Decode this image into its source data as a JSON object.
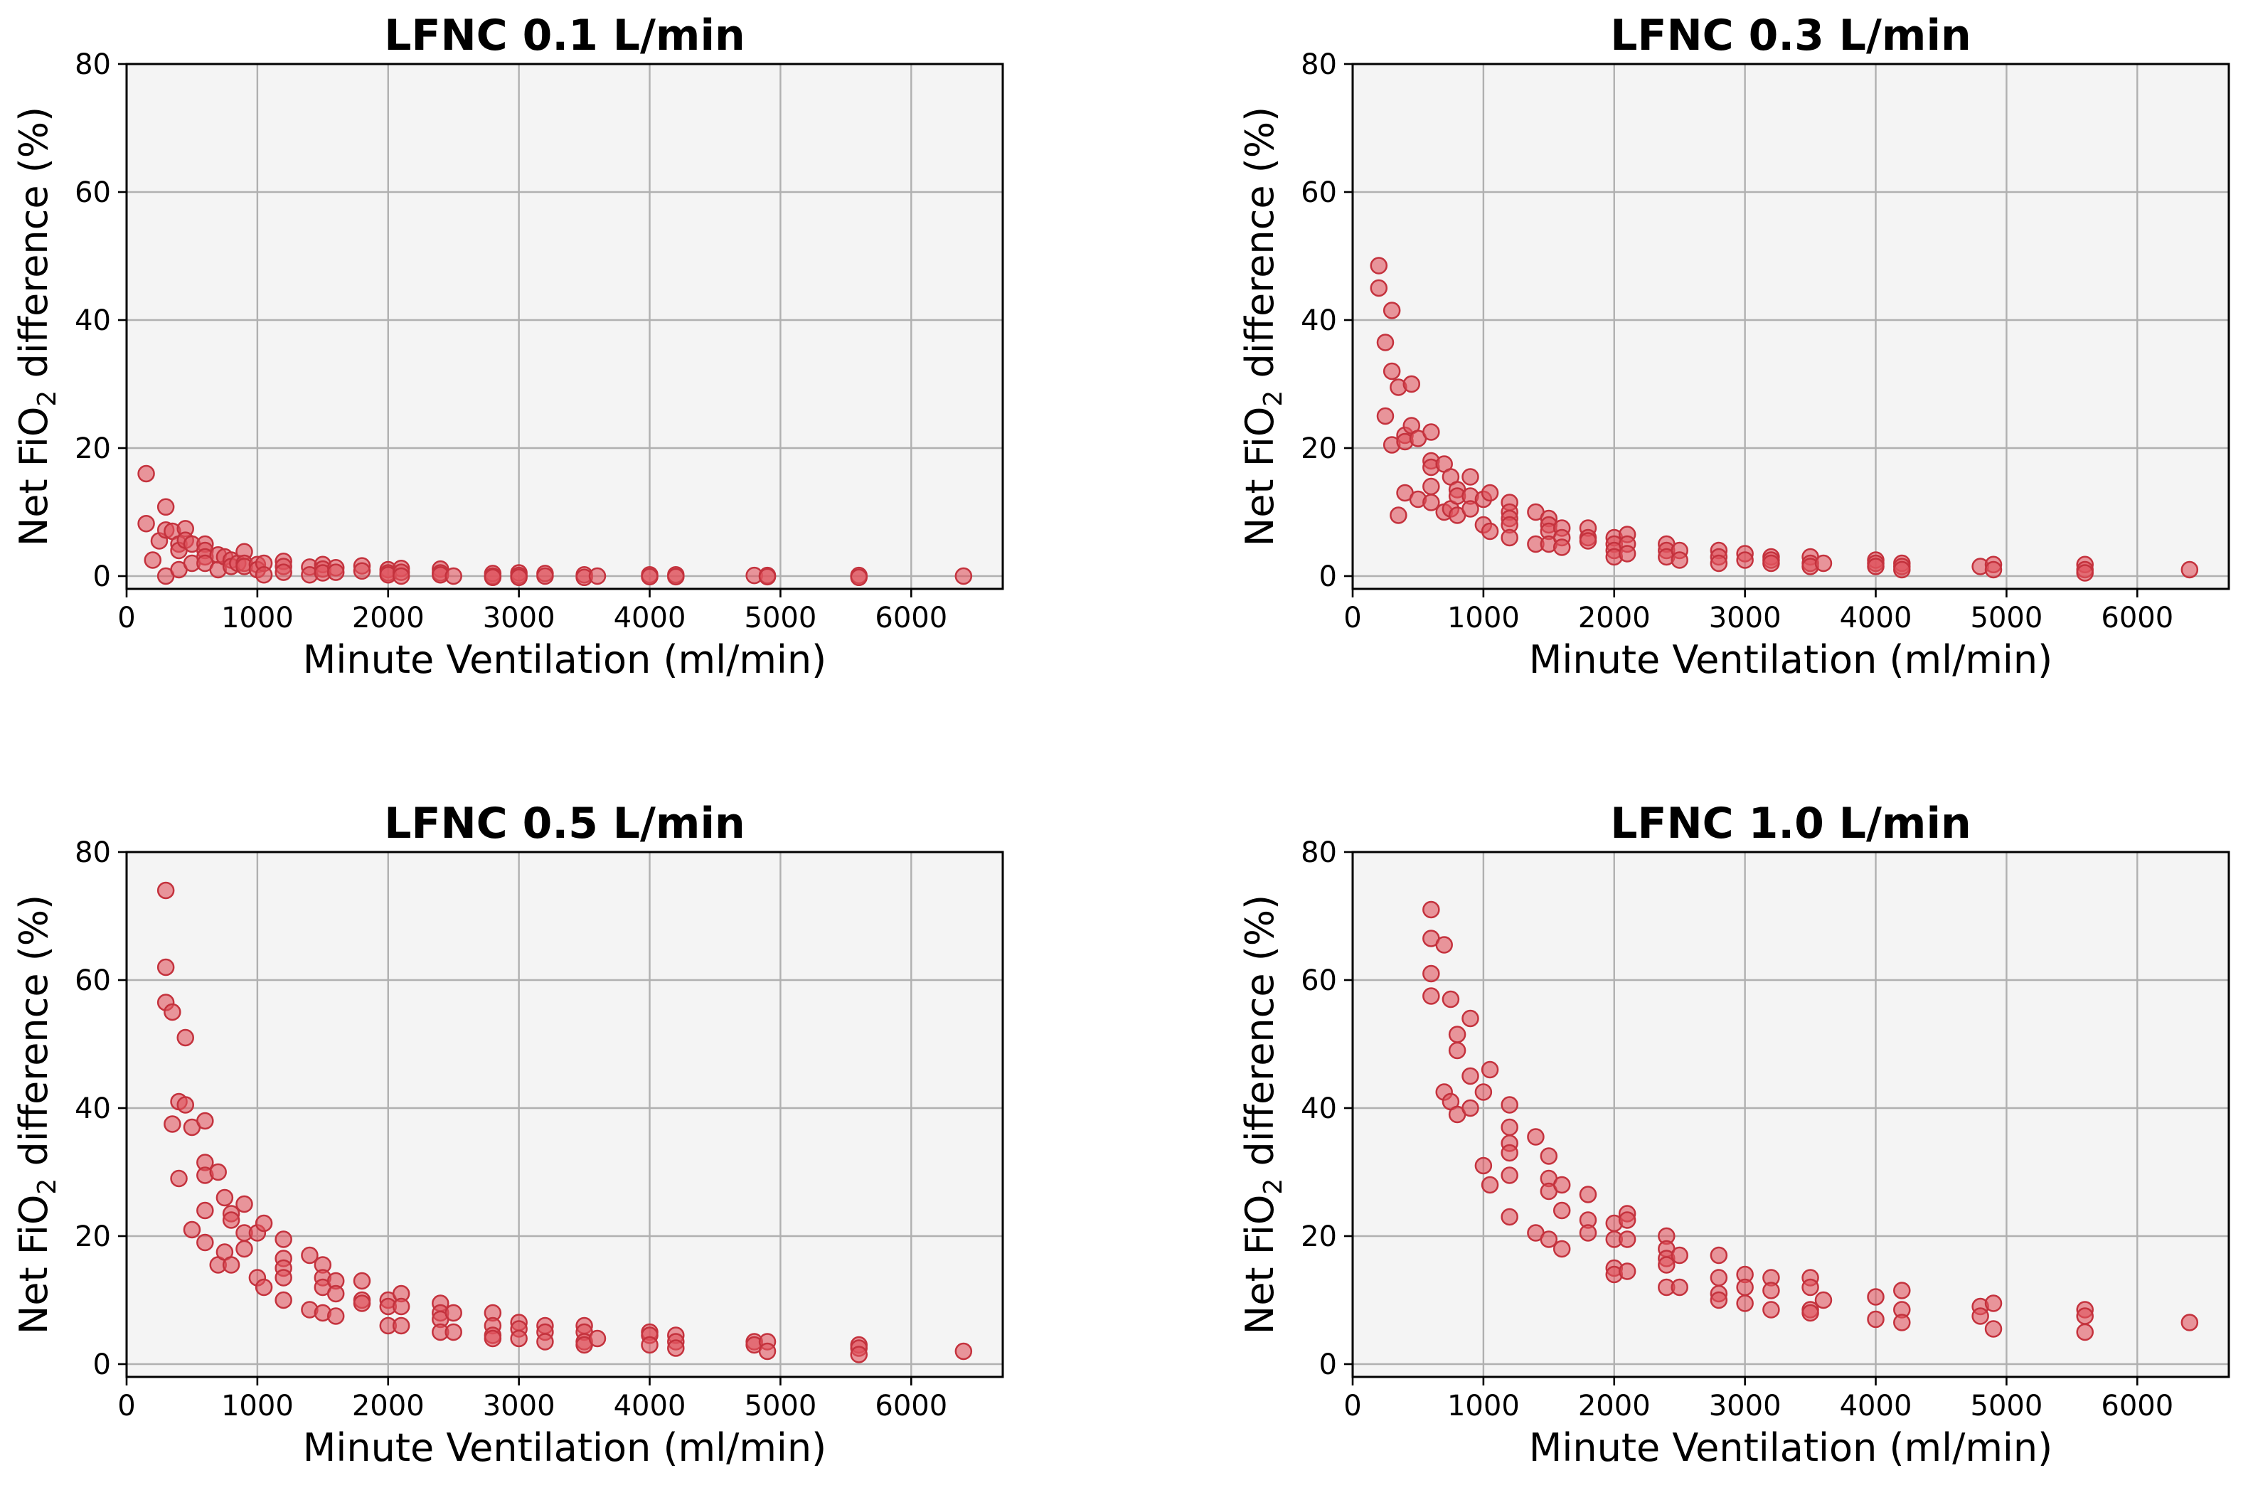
{
  "colors": {
    "marker_fill": "#e0535e",
    "marker_edge": "#c4323d",
    "panel_background": "#f4f4f4",
    "grid": "#b0b0b0"
  },
  "chart_data": [
    {
      "type": "scatter",
      "title": "LFNC 0.1 L/min",
      "xlabel": "Minute Ventilation (ml/min)",
      "ylabel_parts": [
        "Net FiO",
        "2",
        " difference (%)"
      ],
      "xlim": [
        0,
        6700
      ],
      "ylim": [
        -2,
        80
      ],
      "xticks": [
        0,
        1000,
        2000,
        3000,
        4000,
        5000,
        6000
      ],
      "yticks": [
        0,
        20,
        40,
        60,
        80
      ],
      "grid": true,
      "points": [
        [
          150,
          16
        ],
        [
          150,
          8.2
        ],
        [
          200,
          2.5
        ],
        [
          250,
          5.5
        ],
        [
          300,
          10.8
        ],
        [
          300,
          7.2
        ],
        [
          300,
          0
        ],
        [
          350,
          7
        ],
        [
          400,
          5
        ],
        [
          400,
          4
        ],
        [
          400,
          1
        ],
        [
          450,
          7.4
        ],
        [
          450,
          5.6
        ],
        [
          500,
          5
        ],
        [
          500,
          2
        ],
        [
          600,
          5
        ],
        [
          600,
          4
        ],
        [
          600,
          3
        ],
        [
          600,
          2
        ],
        [
          700,
          3.3
        ],
        [
          700,
          1
        ],
        [
          750,
          3
        ],
        [
          800,
          2.5
        ],
        [
          800,
          1.5
        ],
        [
          850,
          2
        ],
        [
          900,
          3.8
        ],
        [
          900,
          2
        ],
        [
          900,
          1.5
        ],
        [
          1000,
          1.8
        ],
        [
          1000,
          1
        ],
        [
          1050,
          2
        ],
        [
          1050,
          0.2
        ],
        [
          1200,
          2.3
        ],
        [
          1200,
          1.5
        ],
        [
          1200,
          0.6
        ],
        [
          1400,
          1.4
        ],
        [
          1400,
          0.2
        ],
        [
          1500,
          1.8
        ],
        [
          1500,
          1.1
        ],
        [
          1500,
          0.5
        ],
        [
          1600,
          1.3
        ],
        [
          1600,
          0.6
        ],
        [
          1800,
          1.6
        ],
        [
          1800,
          0.8
        ],
        [
          2000,
          1
        ],
        [
          2000,
          0.5
        ],
        [
          2000,
          0.2
        ],
        [
          2100,
          1.2
        ],
        [
          2100,
          0.6
        ],
        [
          2100,
          0
        ],
        [
          2400,
          1.1
        ],
        [
          2400,
          0.5
        ],
        [
          2400,
          0.2
        ],
        [
          2500,
          0
        ],
        [
          2800,
          0.4
        ],
        [
          2800,
          0
        ],
        [
          2800,
          -0.2
        ],
        [
          3000,
          0.5
        ],
        [
          3000,
          0.1
        ],
        [
          3000,
          -0.2
        ],
        [
          3200,
          0.4
        ],
        [
          3200,
          0
        ],
        [
          3500,
          0.2
        ],
        [
          3500,
          -0.2
        ],
        [
          3600,
          0
        ],
        [
          4000,
          0.2
        ],
        [
          4000,
          -0.1
        ],
        [
          4200,
          0.2
        ],
        [
          4200,
          -0.1
        ],
        [
          4800,
          0.1
        ],
        [
          4900,
          0.1
        ],
        [
          4900,
          -0.1
        ],
        [
          5600,
          0.1
        ],
        [
          5600,
          -0.2
        ],
        [
          6400,
          0
        ]
      ]
    },
    {
      "type": "scatter",
      "title": "LFNC 0.3 L/min",
      "xlabel": "Minute Ventilation (ml/min)",
      "ylabel_parts": [
        "Net FiO",
        "2",
        " difference (%)"
      ],
      "xlim": [
        0,
        6700
      ],
      "ylim": [
        -2,
        80
      ],
      "xticks": [
        0,
        1000,
        2000,
        3000,
        4000,
        5000,
        6000
      ],
      "yticks": [
        0,
        20,
        40,
        60,
        80
      ],
      "grid": true,
      "points": [
        [
          200,
          48.5
        ],
        [
          200,
          45
        ],
        [
          250,
          36.5
        ],
        [
          250,
          25
        ],
        [
          300,
          41.5
        ],
        [
          300,
          32
        ],
        [
          300,
          20.5
        ],
        [
          350,
          29.5
        ],
        [
          350,
          9.5
        ],
        [
          400,
          22
        ],
        [
          400,
          21
        ],
        [
          400,
          13
        ],
        [
          450,
          30
        ],
        [
          450,
          23.5
        ],
        [
          500,
          21.5
        ],
        [
          500,
          12
        ],
        [
          600,
          22.5
        ],
        [
          600,
          18
        ],
        [
          600,
          17
        ],
        [
          600,
          14
        ],
        [
          600,
          11.5
        ],
        [
          700,
          17.5
        ],
        [
          700,
          10
        ],
        [
          750,
          15.5
        ],
        [
          750,
          10.5
        ],
        [
          800,
          13.5
        ],
        [
          800,
          12.5
        ],
        [
          800,
          9.5
        ],
        [
          900,
          15.5
        ],
        [
          900,
          12.5
        ],
        [
          900,
          10.5
        ],
        [
          1000,
          12
        ],
        [
          1000,
          8
        ],
        [
          1050,
          13
        ],
        [
          1050,
          7
        ],
        [
          1200,
          11.5
        ],
        [
          1200,
          10
        ],
        [
          1200,
          9
        ],
        [
          1200,
          8
        ],
        [
          1200,
          6
        ],
        [
          1400,
          10
        ],
        [
          1400,
          5
        ],
        [
          1500,
          9
        ],
        [
          1500,
          8
        ],
        [
          1500,
          7
        ],
        [
          1500,
          5
        ],
        [
          1600,
          7.5
        ],
        [
          1600,
          6
        ],
        [
          1600,
          4.5
        ],
        [
          1800,
          7.5
        ],
        [
          1800,
          6
        ],
        [
          1800,
          5.5
        ],
        [
          2000,
          6
        ],
        [
          2000,
          5
        ],
        [
          2000,
          4
        ],
        [
          2000,
          3
        ],
        [
          2100,
          6.5
        ],
        [
          2100,
          5
        ],
        [
          2100,
          3.5
        ],
        [
          2400,
          5
        ],
        [
          2400,
          4
        ],
        [
          2400,
          3
        ],
        [
          2500,
          4
        ],
        [
          2500,
          2.5
        ],
        [
          2800,
          4
        ],
        [
          2800,
          3
        ],
        [
          2800,
          2
        ],
        [
          3000,
          3.5
        ],
        [
          3000,
          2.5
        ],
        [
          3200,
          3
        ],
        [
          3200,
          2.5
        ],
        [
          3200,
          2
        ],
        [
          3500,
          3
        ],
        [
          3500,
          2
        ],
        [
          3500,
          1.5
        ],
        [
          3600,
          2
        ],
        [
          4000,
          2.5
        ],
        [
          4000,
          2
        ],
        [
          4000,
          1.5
        ],
        [
          4200,
          2
        ],
        [
          4200,
          1.5
        ],
        [
          4200,
          1
        ],
        [
          4800,
          1.5
        ],
        [
          4900,
          1.8
        ],
        [
          4900,
          1
        ],
        [
          5600,
          1.8
        ],
        [
          5600,
          1
        ],
        [
          5600,
          0.5
        ],
        [
          6400,
          1
        ]
      ]
    },
    {
      "type": "scatter",
      "title": "LFNC 0.5 L/min",
      "xlabel": "Minute Ventilation (ml/min)",
      "ylabel_parts": [
        "Net FiO",
        "2",
        " difference (%)"
      ],
      "xlim": [
        0,
        6700
      ],
      "ylim": [
        -2,
        80
      ],
      "xticks": [
        0,
        1000,
        2000,
        3000,
        4000,
        5000,
        6000
      ],
      "yticks": [
        0,
        20,
        40,
        60,
        80
      ],
      "grid": true,
      "points": [
        [
          300,
          74
        ],
        [
          300,
          62
        ],
        [
          300,
          56.5
        ],
        [
          350,
          55
        ],
        [
          350,
          37.5
        ],
        [
          400,
          41
        ],
        [
          400,
          29
        ],
        [
          450,
          51
        ],
        [
          450,
          40.5
        ],
        [
          500,
          37
        ],
        [
          500,
          21
        ],
        [
          600,
          38
        ],
        [
          600,
          31.5
        ],
        [
          600,
          29.5
        ],
        [
          600,
          24
        ],
        [
          600,
          19
        ],
        [
          700,
          30
        ],
        [
          700,
          15.5
        ],
        [
          750,
          26
        ],
        [
          750,
          17.5
        ],
        [
          800,
          23.5
        ],
        [
          800,
          22.5
        ],
        [
          800,
          15.5
        ],
        [
          900,
          25
        ],
        [
          900,
          20.5
        ],
        [
          900,
          18
        ],
        [
          1000,
          20.5
        ],
        [
          1000,
          13.5
        ],
        [
          1050,
          22
        ],
        [
          1050,
          12
        ],
        [
          1200,
          19.5
        ],
        [
          1200,
          16.5
        ],
        [
          1200,
          15
        ],
        [
          1200,
          13.5
        ],
        [
          1200,
          10
        ],
        [
          1400,
          17
        ],
        [
          1400,
          8.5
        ],
        [
          1500,
          15.5
        ],
        [
          1500,
          13.5
        ],
        [
          1500,
          12
        ],
        [
          1500,
          8
        ],
        [
          1600,
          13
        ],
        [
          1600,
          11
        ],
        [
          1600,
          7.5
        ],
        [
          1800,
          13
        ],
        [
          1800,
          10
        ],
        [
          1800,
          9.5
        ],
        [
          2000,
          10
        ],
        [
          2000,
          9
        ],
        [
          2000,
          6
        ],
        [
          2100,
          11
        ],
        [
          2100,
          9
        ],
        [
          2100,
          6
        ],
        [
          2400,
          9.5
        ],
        [
          2400,
          8
        ],
        [
          2400,
          7
        ],
        [
          2400,
          5
        ],
        [
          2500,
          8
        ],
        [
          2500,
          5
        ],
        [
          2800,
          8
        ],
        [
          2800,
          6
        ],
        [
          2800,
          4.5
        ],
        [
          2800,
          4
        ],
        [
          3000,
          6.5
        ],
        [
          3000,
          5.5
        ],
        [
          3000,
          4
        ],
        [
          3200,
          6
        ],
        [
          3200,
          5
        ],
        [
          3200,
          3.5
        ],
        [
          3500,
          6
        ],
        [
          3500,
          5
        ],
        [
          3500,
          3.5
        ],
        [
          3500,
          3
        ],
        [
          3600,
          4
        ],
        [
          4000,
          5
        ],
        [
          4000,
          4.5
        ],
        [
          4000,
          3
        ],
        [
          4200,
          4.5
        ],
        [
          4200,
          3.5
        ],
        [
          4200,
          2.5
        ],
        [
          4800,
          3.5
        ],
        [
          4800,
          3
        ],
        [
          4900,
          3.5
        ],
        [
          4900,
          2
        ],
        [
          5600,
          3
        ],
        [
          5600,
          2.5
        ],
        [
          5600,
          1.5
        ],
        [
          6400,
          2
        ]
      ]
    },
    {
      "type": "scatter",
      "title": "LFNC 1.0 L/min",
      "xlabel": "Minute Ventilation (ml/min)",
      "ylabel_parts": [
        "Net FiO",
        "2",
        " difference (%)"
      ],
      "xlim": [
        0,
        6700
      ],
      "ylim": [
        -2,
        80
      ],
      "xticks": [
        0,
        1000,
        2000,
        3000,
        4000,
        5000,
        6000
      ],
      "yticks": [
        0,
        20,
        40,
        60,
        80
      ],
      "grid": true,
      "points": [
        [
          600,
          71
        ],
        [
          600,
          66.5
        ],
        [
          600,
          61
        ],
        [
          600,
          57.5
        ],
        [
          700,
          65.5
        ],
        [
          700,
          42.5
        ],
        [
          750,
          57
        ],
        [
          750,
          41
        ],
        [
          800,
          51.5
        ],
        [
          800,
          49
        ],
        [
          800,
          39
        ],
        [
          900,
          54
        ],
        [
          900,
          45
        ],
        [
          900,
          40
        ],
        [
          1000,
          42.5
        ],
        [
          1000,
          31
        ],
        [
          1050,
          46
        ],
        [
          1050,
          28
        ],
        [
          1200,
          40.5
        ],
        [
          1200,
          37
        ],
        [
          1200,
          34.5
        ],
        [
          1200,
          33
        ],
        [
          1200,
          29.5
        ],
        [
          1200,
          23
        ],
        [
          1400,
          35.5
        ],
        [
          1400,
          20.5
        ],
        [
          1500,
          32.5
        ],
        [
          1500,
          29
        ],
        [
          1500,
          27
        ],
        [
          1500,
          19.5
        ],
        [
          1600,
          28
        ],
        [
          1600,
          24
        ],
        [
          1600,
          18
        ],
        [
          1800,
          26.5
        ],
        [
          1800,
          22.5
        ],
        [
          1800,
          20.5
        ],
        [
          2000,
          22
        ],
        [
          2000,
          19.5
        ],
        [
          2000,
          15
        ],
        [
          2000,
          14
        ],
        [
          2100,
          23.5
        ],
        [
          2100,
          22.5
        ],
        [
          2100,
          19.5
        ],
        [
          2100,
          14.5
        ],
        [
          2400,
          20
        ],
        [
          2400,
          18
        ],
        [
          2400,
          16.5
        ],
        [
          2400,
          15.5
        ],
        [
          2400,
          12
        ],
        [
          2500,
          17
        ],
        [
          2500,
          12
        ],
        [
          2800,
          17
        ],
        [
          2800,
          13.5
        ],
        [
          2800,
          11
        ],
        [
          2800,
          10
        ],
        [
          3000,
          14
        ],
        [
          3000,
          12
        ],
        [
          3000,
          9.5
        ],
        [
          3200,
          13.5
        ],
        [
          3200,
          11.5
        ],
        [
          3200,
          8.5
        ],
        [
          3500,
          13.5
        ],
        [
          3500,
          12
        ],
        [
          3500,
          8.5
        ],
        [
          3500,
          8
        ],
        [
          3600,
          10
        ],
        [
          4000,
          10.5
        ],
        [
          4000,
          7
        ],
        [
          4200,
          11.5
        ],
        [
          4200,
          8.5
        ],
        [
          4200,
          6.5
        ],
        [
          4800,
          9
        ],
        [
          4800,
          7.5
        ],
        [
          4900,
          9.5
        ],
        [
          4900,
          5.5
        ],
        [
          5600,
          8.5
        ],
        [
          5600,
          7.5
        ],
        [
          5600,
          5
        ],
        [
          6400,
          6.5
        ]
      ]
    }
  ]
}
